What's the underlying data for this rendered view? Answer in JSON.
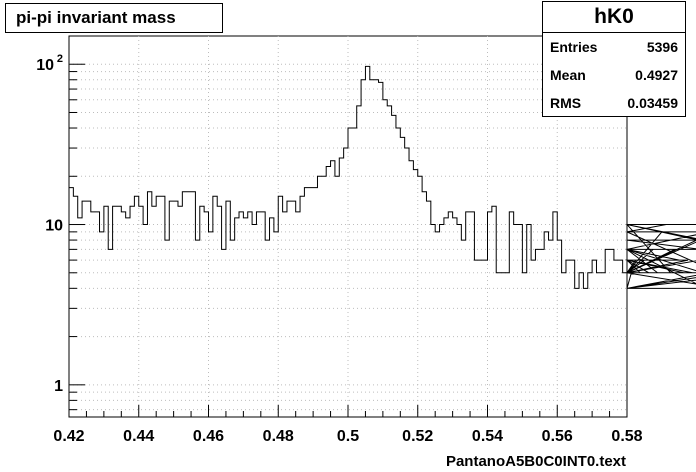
{
  "title": "pi-pi invariant mass",
  "stats": {
    "name": "hK0",
    "rows": [
      {
        "label": "Entries",
        "value": "5396"
      },
      {
        "label": "Mean",
        "value": "0.4927"
      },
      {
        "label": "RMS",
        "value": "0.03459"
      }
    ]
  },
  "chart_data": {
    "type": "line",
    "style": "step-histogram",
    "xlabel": "PantanoA5B0C0INT0.text",
    "ylabel": "",
    "xlim": [
      0.42,
      0.58
    ],
    "ylim": [
      0.63,
      150
    ],
    "yscale": "log",
    "grid": true,
    "xticks": [
      {
        "value": 0.42,
        "label": "0.42"
      },
      {
        "value": 0.44,
        "label": "0.44"
      },
      {
        "value": 0.46,
        "label": "0.46"
      },
      {
        "value": 0.48,
        "label": "0.48"
      },
      {
        "value": 0.5,
        "label": "0.5"
      },
      {
        "value": 0.52,
        "label": "0.52"
      },
      {
        "value": 0.54,
        "label": "0.54"
      },
      {
        "value": 0.56,
        "label": "0.56"
      },
      {
        "value": 0.58,
        "label": "0.58"
      }
    ],
    "yticks": [
      {
        "value": 1,
        "label": "1"
      },
      {
        "value": 10,
        "label": "10"
      },
      {
        "value": 100,
        "label": "10",
        "exponent": "2"
      }
    ],
    "bin_low_edge": 0.42,
    "bin_width": 0.00125,
    "values": [
      17,
      15,
      11,
      14,
      14,
      12,
      12,
      9,
      13,
      7,
      13,
      13,
      12,
      11,
      13,
      15,
      13,
      10,
      16,
      13,
      15,
      15,
      8,
      14,
      14,
      13,
      16,
      16,
      16,
      8,
      13,
      12,
      9,
      15,
      13,
      7,
      14,
      8,
      11,
      12,
      11,
      12,
      10,
      12,
      12,
      8,
      11,
      9,
      15,
      12,
      14,
      14,
      12,
      15,
      17,
      17,
      17,
      20,
      20,
      23,
      25,
      20,
      26,
      30,
      40,
      40,
      55,
      80,
      97,
      80,
      80,
      77,
      60,
      55,
      48,
      40,
      35,
      30,
      25,
      22,
      20,
      16,
      14,
      10,
      9,
      10,
      11,
      12,
      11,
      10,
      8,
      12,
      12,
      6,
      6,
      6,
      12,
      13,
      5,
      5,
      5,
      12,
      10,
      10,
      5,
      10,
      6,
      7,
      7,
      9,
      8,
      12,
      8,
      5,
      6,
      6,
      4,
      5,
      4,
      5,
      6,
      5,
      5,
      7,
      7,
      6,
      6,
      5,
      4,
      5,
      6,
      5,
      6,
      5,
      7,
      5,
      9,
      10,
      5,
      7,
      6,
      5,
      6,
      5,
      8,
      7,
      4,
      5,
      9,
      5,
      4,
      5,
      5,
      10,
      7,
      10,
      7,
      4,
      5,
      7
    ]
  }
}
